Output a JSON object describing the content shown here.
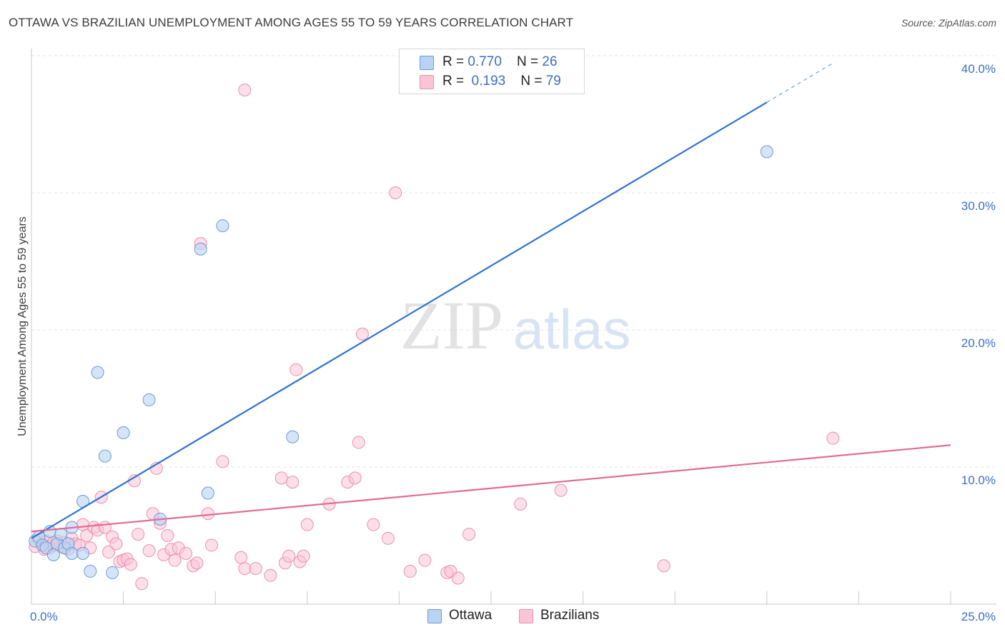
{
  "title": "OTTAWA VS BRAZILIAN UNEMPLOYMENT AMONG AGES 55 TO 59 YEARS CORRELATION CHART",
  "source": "Source: ZipAtlas.com",
  "watermark": {
    "zip": "ZIP",
    "atlas": "atlas"
  },
  "legend": {
    "ottawa": {
      "r_label": "R = ",
      "r_value": "0.770",
      "n_label": "N = ",
      "n_value": "26"
    },
    "brazilians": {
      "r_label": "R = ",
      "r_value": "0.193",
      "n_label": "N = ",
      "n_value": "79"
    }
  },
  "colors": {
    "ottawa_fill": "#b9d3f3",
    "ottawa_stroke": "#6a9ad8",
    "ottawa_line": "#2e72d2",
    "brazil_fill": "#f9c5d6",
    "brazil_stroke": "#eb8fae",
    "brazil_line": "#e46a97",
    "tick_text": "#3a6fc4",
    "grid": "#e3e3e3"
  },
  "chart_data": {
    "type": "scatter",
    "xlabel": "",
    "ylabel": "Unemployment Among Ages 55 to 59 years",
    "xlim": [
      0,
      25
    ],
    "ylim": [
      0,
      40
    ],
    "x_ticks": [
      "0.0%",
      "25.0%"
    ],
    "y_ticks": [
      {
        "value": 10,
        "label": "10.0%"
      },
      {
        "value": 20,
        "label": "20.0%"
      },
      {
        "value": 30,
        "label": "30.0%"
      },
      {
        "value": 40,
        "label": "40.0%"
      }
    ],
    "grid": "horizontal dashed",
    "legend_position": "top-center",
    "series": [
      {
        "name": "Ottawa",
        "trend": {
          "x0": 0.0,
          "y0": 4.8,
          "x1": 20.0,
          "y1": 36.6,
          "dashed_to_x": 21.8
        },
        "points": [
          [
            0.1,
            4.6
          ],
          [
            0.2,
            4.9
          ],
          [
            0.3,
            4.3
          ],
          [
            0.4,
            4.1
          ],
          [
            0.5,
            5.3
          ],
          [
            0.6,
            3.6
          ],
          [
            0.7,
            4.4
          ],
          [
            0.8,
            5.1
          ],
          [
            0.9,
            4.1
          ],
          [
            1.0,
            4.4
          ],
          [
            1.1,
            3.7
          ],
          [
            1.1,
            5.6
          ],
          [
            1.4,
            3.7
          ],
          [
            1.4,
            7.5
          ],
          [
            1.6,
            2.4
          ],
          [
            1.8,
            16.9
          ],
          [
            2.0,
            10.8
          ],
          [
            2.2,
            2.3
          ],
          [
            2.5,
            12.5
          ],
          [
            3.2,
            14.9
          ],
          [
            3.5,
            6.2
          ],
          [
            4.6,
            25.9
          ],
          [
            4.8,
            8.1
          ],
          [
            5.2,
            27.6
          ],
          [
            7.1,
            12.2
          ],
          [
            20.0,
            33.0
          ]
        ]
      },
      {
        "name": "Brazilians",
        "trend": {
          "x0": 0.0,
          "y0": 5.3,
          "x1": 25.0,
          "y1": 11.6
        },
        "points": [
          [
            0.1,
            4.2
          ],
          [
            0.2,
            4.7
          ],
          [
            0.3,
            4.4
          ],
          [
            0.35,
            4.0
          ],
          [
            0.4,
            4.6
          ],
          [
            0.5,
            4.1
          ],
          [
            0.6,
            4.3
          ],
          [
            0.7,
            4.6
          ],
          [
            0.8,
            4.2
          ],
          [
            0.9,
            4.5
          ],
          [
            1.0,
            4.0
          ],
          [
            1.1,
            4.8
          ],
          [
            1.2,
            4.4
          ],
          [
            1.4,
            5.8
          ],
          [
            1.5,
            5.0
          ],
          [
            1.6,
            4.1
          ],
          [
            1.7,
            5.6
          ],
          [
            1.8,
            5.4
          ],
          [
            1.9,
            7.8
          ],
          [
            2.0,
            5.6
          ],
          [
            2.1,
            3.8
          ],
          [
            2.2,
            4.9
          ],
          [
            2.3,
            4.4
          ],
          [
            2.4,
            3.1
          ],
          [
            2.5,
            3.2
          ],
          [
            2.6,
            3.3
          ],
          [
            2.7,
            2.9
          ],
          [
            2.8,
            9.0
          ],
          [
            2.9,
            5.1
          ],
          [
            3.0,
            1.5
          ],
          [
            3.2,
            3.9
          ],
          [
            3.3,
            6.6
          ],
          [
            3.4,
            9.9
          ],
          [
            3.5,
            5.9
          ],
          [
            3.6,
            3.6
          ],
          [
            3.7,
            5.0
          ],
          [
            3.8,
            4.0
          ],
          [
            3.9,
            3.2
          ],
          [
            4.0,
            4.1
          ],
          [
            4.2,
            3.7
          ],
          [
            4.4,
            2.8
          ],
          [
            4.5,
            3.0
          ],
          [
            4.6,
            26.3
          ],
          [
            4.8,
            6.6
          ],
          [
            4.9,
            4.3
          ],
          [
            5.2,
            10.4
          ],
          [
            5.7,
            3.4
          ],
          [
            5.8,
            2.6
          ],
          [
            5.8,
            37.5
          ],
          [
            6.1,
            2.6
          ],
          [
            6.5,
            2.1
          ],
          [
            6.8,
            9.2
          ],
          [
            6.9,
            3.0
          ],
          [
            7.0,
            3.5
          ],
          [
            7.1,
            8.9
          ],
          [
            7.2,
            17.1
          ],
          [
            7.3,
            3.1
          ],
          [
            7.4,
            3.5
          ],
          [
            7.5,
            5.8
          ],
          [
            8.1,
            7.3
          ],
          [
            8.6,
            8.9
          ],
          [
            8.8,
            9.2
          ],
          [
            8.9,
            11.8
          ],
          [
            9.0,
            19.7
          ],
          [
            9.3,
            5.8
          ],
          [
            9.7,
            4.8
          ],
          [
            9.9,
            30.0
          ],
          [
            10.3,
            2.4
          ],
          [
            10.7,
            3.2
          ],
          [
            11.3,
            2.3
          ],
          [
            11.4,
            2.4
          ],
          [
            11.6,
            1.9
          ],
          [
            11.9,
            5.1
          ],
          [
            13.3,
            7.3
          ],
          [
            14.4,
            8.3
          ],
          [
            17.2,
            2.8
          ],
          [
            21.8,
            12.1
          ],
          [
            0.6,
            4.5
          ],
          [
            1.3,
            4.3
          ]
        ]
      }
    ]
  },
  "bottom_legend": {
    "ottawa": "Ottawa",
    "brazilians": "Brazilians"
  }
}
